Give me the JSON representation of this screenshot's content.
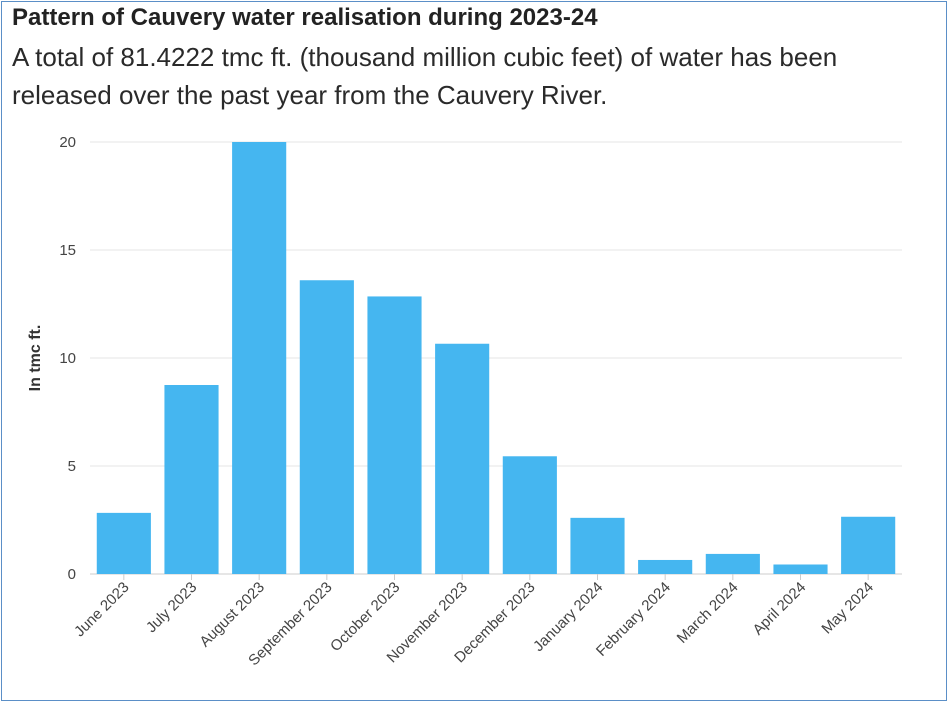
{
  "title": "Pattern of Cauvery water realisation during 2023-24",
  "subtitle": "A total of 81.4222 tmc ft. (thousand million cubic feet) of water has been released over the past year from the Cauvery River.",
  "colors": {
    "bar": "#45b6f0",
    "grid": "#e6e6e6",
    "border": "#5b8fc7"
  },
  "chart_data": {
    "type": "bar",
    "title": "Pattern of Cauvery water realisation during 2023-24",
    "subtitle": "A total of 81.4222 tmc ft. (thousand million cubic feet) of water has been released over the past year from the Cauvery River.",
    "xlabel": "",
    "ylabel": "In tmc ft.",
    "ylim": [
      0,
      20
    ],
    "yticks": [
      0,
      5,
      10,
      15,
      20
    ],
    "grid": true,
    "legend": "none",
    "categories": [
      "June 2023",
      "July 2023",
      "August 2023",
      "September 2023",
      "October 2023",
      "November 2023",
      "December 2023",
      "January 2024",
      "February 2024",
      "March 2024",
      "April 2024",
      "May 2024"
    ],
    "values": [
      2.83,
      8.75,
      20.0,
      13.6,
      12.85,
      10.66,
      5.45,
      2.6,
      0.65,
      0.93,
      0.44,
      2.65
    ]
  }
}
